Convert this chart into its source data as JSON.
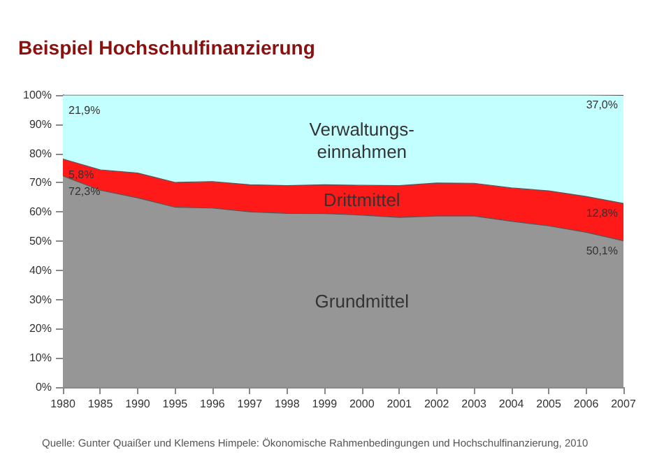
{
  "chart_data": {
    "type": "area",
    "title": "Beispiel Hochschulfinanzierung",
    "stacked": true,
    "legend": false,
    "categories": [
      "1980",
      "1985",
      "1990",
      "1995",
      "1996",
      "1997",
      "1998",
      "1999",
      "2000",
      "2001",
      "2002",
      "2003",
      "2004",
      "2005",
      "2006",
      "2007"
    ],
    "series": [
      {
        "name": "Grundmittel",
        "color": "#969696",
        "values": [
          72.3,
          67.4,
          64.8,
          61.6,
          61.3,
          60.0,
          59.5,
          59.4,
          58.9,
          58.1,
          58.6,
          58.6,
          56.8,
          55.2,
          53.0,
          50.1
        ],
        "value_labels": [
          "72,3%",
          null,
          null,
          null,
          null,
          null,
          null,
          null,
          null,
          null,
          null,
          null,
          null,
          null,
          null,
          "50,1%"
        ]
      },
      {
        "name": "Drittmittel",
        "color": "#ff1a1a",
        "values": [
          5.8,
          7.0,
          8.5,
          8.5,
          9.1,
          9.3,
          9.5,
          9.9,
          10.2,
          10.9,
          11.3,
          11.2,
          11.4,
          12.0,
          12.3,
          12.8
        ],
        "value_labels": [
          "5,8%",
          null,
          null,
          null,
          null,
          null,
          null,
          null,
          null,
          null,
          null,
          null,
          null,
          null,
          null,
          "12,8%"
        ]
      },
      {
        "name": "Verwaltungs-\neinnahmen",
        "color": "#c4ffff",
        "values": [
          21.9,
          25.6,
          26.7,
          29.9,
          29.6,
          30.7,
          31.0,
          30.7,
          30.9,
          31.0,
          30.1,
          30.2,
          31.8,
          32.8,
          34.7,
          37.0
        ],
        "value_labels": [
          "21,9%",
          null,
          null,
          null,
          null,
          null,
          null,
          null,
          null,
          null,
          null,
          null,
          null,
          null,
          null,
          "37,0%"
        ]
      }
    ],
    "ylim": [
      0,
      100
    ],
    "yticks": [
      {
        "value": 0,
        "label": "0%"
      },
      {
        "value": 10,
        "label": "10%"
      },
      {
        "value": 20,
        "label": "20%"
      },
      {
        "value": 30,
        "label": "30%"
      },
      {
        "value": 40,
        "label": "40%"
      },
      {
        "value": 50,
        "label": "50%"
      },
      {
        "value": 60,
        "label": "60%"
      },
      {
        "value": 70,
        "label": "70%"
      },
      {
        "value": 80,
        "label": "80%"
      },
      {
        "value": 90,
        "label": "90%"
      },
      {
        "value": 100,
        "label": "100%"
      }
    ],
    "annotations": [
      "Quelle: Gunter Quaißer und Klemens Himpele: Ökonomische Rahmenbedingungen und Hochschulfinanzierung, 2010"
    ]
  }
}
